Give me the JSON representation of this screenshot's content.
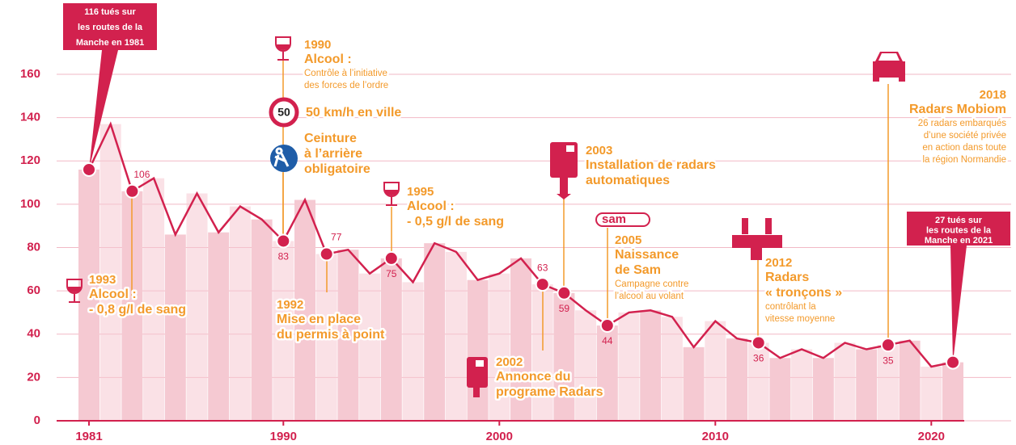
{
  "chart_data": {
    "type": "line",
    "x": [
      1981,
      1982,
      1983,
      1984,
      1985,
      1986,
      1987,
      1988,
      1989,
      1990,
      1991,
      1992,
      1993,
      1994,
      1995,
      1996,
      1997,
      1998,
      1999,
      2000,
      2001,
      2002,
      2003,
      2004,
      2005,
      2006,
      2007,
      2008,
      2009,
      2010,
      2011,
      2012,
      2013,
      2014,
      2015,
      2016,
      2017,
      2018,
      2019,
      2020,
      2021
    ],
    "values": [
      116,
      137,
      106,
      112,
      86,
      105,
      87,
      99,
      93,
      83,
      102,
      77,
      79,
      68,
      75,
      64,
      82,
      78,
      65,
      68,
      75,
      63,
      59,
      51,
      44,
      50,
      51,
      48,
      34,
      46,
      38,
      36,
      29,
      33,
      29,
      36,
      33,
      35,
      37,
      25,
      27
    ],
    "value_labels": [
      null,
      null,
      "106",
      null,
      null,
      null,
      null,
      null,
      null,
      "83",
      null,
      "77",
      null,
      null,
      "75",
      null,
      null,
      null,
      null,
      null,
      null,
      "63",
      "59",
      null,
      "44",
      null,
      null,
      null,
      null,
      null,
      null,
      "36",
      null,
      null,
      null,
      null,
      null,
      "35",
      null,
      null,
      null
    ],
    "color": "#d2214e",
    "bar_color": "#f5c9d2",
    "xlim": [
      1981,
      2021
    ],
    "xticks": [
      1981,
      1990,
      2000,
      2010,
      2020
    ],
    "ylim": [
      0,
      160
    ],
    "yticks": [
      0,
      20,
      40,
      60,
      80,
      100,
      120,
      140,
      160
    ],
    "grid": true,
    "callouts": [
      {
        "x": 1981,
        "lines": [
          "116 tués sur",
          "les routes de la",
          "Manche en 1981"
        ]
      },
      {
        "x": 2021,
        "lines": [
          "27 tués sur",
          "les routes de la",
          "Manche en 2021"
        ]
      }
    ],
    "annotations": [
      {
        "year": "1990",
        "head": [
          "Alcool :"
        ],
        "sub": [
          "Contrôle à l’initiative",
          "des forces de l’ordre"
        ]
      },
      {
        "head": [
          "50 km/h en ville"
        ],
        "sub": []
      },
      {
        "head": [
          "Ceinture",
          "à l’arrière",
          "obligatoire"
        ],
        "sub": []
      },
      {
        "year": "1995",
        "head": [
          "Alcool :",
          "- 0,5 g/l de sang"
        ],
        "sub": []
      },
      {
        "year": "1993",
        "head": [
          "Alcool :",
          "- 0,8 g/l de sang"
        ],
        "sub": []
      },
      {
        "year": "1992",
        "head": [
          "Mise en place",
          "du permis à point"
        ],
        "sub": []
      },
      {
        "year": "2002",
        "head": [
          "Annonce du",
          "programe Radars"
        ],
        "sub": []
      },
      {
        "year": "2003",
        "head": [
          "Installation de radars",
          "automatiques"
        ],
        "sub": []
      },
      {
        "year": "2005",
        "head": [
          "Naissance",
          "de Sam"
        ],
        "sub": [
          "Campagne contre",
          "l’alcool au volant"
        ]
      },
      {
        "year": "2012",
        "head": [
          "Radars",
          "« tronçons »"
        ],
        "sub": [
          "contrôlant la",
          "vitesse moyenne"
        ]
      },
      {
        "year": "2018",
        "head": [
          "Radars Mobiom"
        ],
        "sub": [
          "26 radars embarqués",
          "d’une société privée",
          "en action dans toute",
          "la région Normandie"
        ]
      }
    ]
  }
}
